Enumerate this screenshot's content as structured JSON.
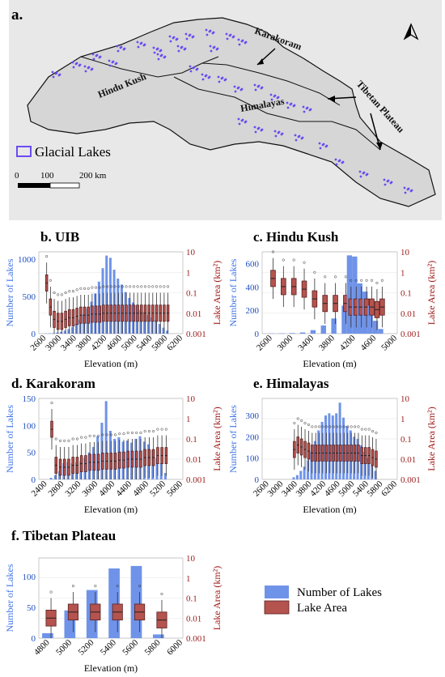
{
  "map": {
    "panel_label": "a.",
    "labels": {
      "hindu_kush": "Hindu Kush",
      "karakoram": "Karakoram",
      "himalayas": "Himalayas",
      "tibetan_plateau": "Tibetan Plateau"
    },
    "legend": "Glacial Lakes",
    "scale": [
      "0",
      "100",
      "200 km"
    ],
    "colors": {
      "lakes": "#6b4cf0",
      "terrain": "#e9e9e9"
    }
  },
  "legend": {
    "count": "Number of Lakes",
    "area": "Lake Area"
  },
  "colors": {
    "bar": "#6f93e8",
    "box": "#b5534e",
    "left_axis": "#3f73e6",
    "right_axis": "#a11a1a"
  },
  "chart_data": [
    {
      "type": "bar",
      "title": "b. UIB",
      "xlabel": "Elevation (m)",
      "ylabel": "Number of Lakes",
      "y2label": "Lake Area (km²)",
      "ylim": [
        0,
        1100
      ],
      "y2lim": [
        0.001,
        10
      ],
      "y2scale": "log",
      "yticks": [
        "0",
        "500",
        "1000"
      ],
      "y2ticks": [
        "0.001",
        "0.01",
        "0.1",
        "1",
        "10"
      ],
      "xticks": [
        "2600",
        "3000",
        "3400",
        "3800",
        "4200",
        "4600",
        "5000",
        "5400",
        "5800",
        "6200"
      ],
      "x": [
        2600,
        2700,
        2800,
        2900,
        3000,
        3100,
        3200,
        3300,
        3400,
        3500,
        3600,
        3700,
        3800,
        3900,
        4000,
        4100,
        4200,
        4300,
        4400,
        4500,
        4600,
        4700,
        4800,
        4900,
        5000,
        5100,
        5200,
        5300,
        5400,
        5500,
        5600,
        5700,
        5800
      ],
      "counts": [
        3,
        5,
        8,
        15,
        25,
        40,
        60,
        90,
        130,
        190,
        260,
        340,
        430,
        540,
        700,
        880,
        1050,
        1020,
        860,
        740,
        660,
        560,
        480,
        420,
        380,
        320,
        290,
        250,
        220,
        180,
        130,
        80,
        40
      ],
      "box_median": [
        0.3,
        0.02,
        0.005,
        0.004,
        0.004,
        0.005,
        0.006,
        0.006,
        0.007,
        0.008,
        0.008,
        0.008,
        0.009,
        0.009,
        0.009,
        0.01,
        0.01,
        0.01,
        0.01,
        0.01,
        0.01,
        0.01,
        0.01,
        0.01,
        0.01,
        0.01,
        0.01,
        0.01,
        0.01,
        0.01,
        0.01,
        0.01,
        0.01
      ]
    },
    {
      "type": "bar",
      "title": "c. Hindu Kush",
      "xlabel": "Elevation (m)",
      "ylabel": "Number of Lakes",
      "y2label": "Lake Area (km²)",
      "ylim": [
        0,
        700
      ],
      "y2lim": [
        0.001,
        10
      ],
      "y2scale": "log",
      "yticks": [
        "0",
        "200",
        "400",
        "600"
      ],
      "y2ticks": [
        "0.001",
        "0.01",
        "0.1",
        "1",
        "10"
      ],
      "xticks": [
        "2600",
        "3000",
        "3400",
        "3800",
        "4200",
        "4600",
        "5000"
      ],
      "x": [
        2600,
        2800,
        3000,
        3200,
        3400,
        3600,
        3800,
        4000,
        4100,
        4200,
        4300,
        4400,
        4500,
        4600,
        4700
      ],
      "counts": [
        2,
        3,
        5,
        10,
        30,
        70,
        130,
        240,
        670,
        660,
        430,
        360,
        240,
        110,
        40
      ],
      "box_median": [
        0.5,
        0.2,
        0.2,
        0.15,
        0.05,
        0.03,
        0.03,
        0.03,
        0.02,
        0.02,
        0.02,
        0.02,
        0.02,
        0.015,
        0.02
      ]
    },
    {
      "type": "bar",
      "title": "d. Karakoram",
      "xlabel": "Elevation (m)",
      "ylabel": "Number of Lakes",
      "y2label": "Lake Area (km²)",
      "ylim": [
        0,
        150
      ],
      "y2lim": [
        0.001,
        10
      ],
      "y2scale": "log",
      "yticks": [
        "0",
        "50",
        "100",
        "150"
      ],
      "y2ticks": [
        "0.001",
        "0.01",
        "0.1",
        "1",
        "10"
      ],
      "xticks": [
        "2400",
        "2800",
        "3200",
        "3600",
        "4000",
        "4400",
        "4800",
        "5200",
        "5600"
      ],
      "x": [
        2500,
        2600,
        2700,
        2800,
        2900,
        3000,
        3100,
        3200,
        3300,
        3400,
        3500,
        3600,
        3700,
        3800,
        3900,
        4000,
        4100,
        4200,
        4300,
        4400,
        4500,
        4600,
        4700,
        4800,
        4900,
        5000,
        5100,
        5200
      ],
      "counts": [
        3,
        8,
        15,
        30,
        32,
        30,
        32,
        34,
        40,
        50,
        60,
        80,
        105,
        145,
        90,
        75,
        78,
        70,
        72,
        68,
        75,
        80,
        70,
        65,
        55,
        40,
        30,
        12
      ],
      "box_median": [
        0.3,
        0.005,
        0.004,
        0.004,
        0.004,
        0.005,
        0.005,
        0.006,
        0.006,
        0.007,
        0.007,
        0.007,
        0.008,
        0.008,
        0.008,
        0.008,
        0.009,
        0.009,
        0.01,
        0.01,
        0.01,
        0.01,
        0.012,
        0.012,
        0.012,
        0.015,
        0.015,
        0.015
      ]
    },
    {
      "type": "bar",
      "title": "e. Himalayas",
      "xlabel": "Elevation (m)",
      "ylabel": "Number of Lakes",
      "y2label": "Lake Area (km²)",
      "ylim": [
        0,
        380
      ],
      "y2lim": [
        0.001,
        10
      ],
      "y2scale": "log",
      "yticks": [
        "0",
        "100",
        "200",
        "300"
      ],
      "y2ticks": [
        "0.001",
        "0.01",
        "0.1",
        "1",
        "10"
      ],
      "xticks": [
        "2600",
        "3000",
        "3400",
        "3800",
        "4200",
        "4600",
        "5000",
        "5400",
        "5800",
        "6200"
      ],
      "x": [
        3300,
        3400,
        3500,
        3600,
        3700,
        3800,
        3900,
        4000,
        4100,
        4200,
        4300,
        4400,
        4500,
        4600,
        4700,
        4800,
        4900,
        5000,
        5100,
        5200,
        5300,
        5400,
        5500,
        5600
      ],
      "counts": [
        10,
        20,
        40,
        60,
        90,
        130,
        180,
        230,
        270,
        300,
        310,
        300,
        310,
        360,
        290,
        250,
        230,
        200,
        190,
        160,
        130,
        100,
        70,
        40
      ],
      "box_median": [
        0.03,
        0.05,
        0.04,
        0.03,
        0.025,
        0.02,
        0.02,
        0.02,
        0.02,
        0.02,
        0.02,
        0.02,
        0.02,
        0.02,
        0.02,
        0.02,
        0.02,
        0.02,
        0.02,
        0.015,
        0.015,
        0.015,
        0.012,
        0.01
      ]
    },
    {
      "type": "bar",
      "title": "f. Tibetan Plateau",
      "xlabel": "Elevation (m)",
      "ylabel": "Number of Lakes",
      "y2label": "Lake Area (km²)",
      "ylim": [
        0,
        130
      ],
      "y2lim": [
        0.001,
        10
      ],
      "y2scale": "log",
      "yticks": [
        "0",
        "50",
        "100"
      ],
      "y2ticks": [
        "0.001",
        "0.01",
        "0.1",
        "1",
        "10"
      ],
      "xticks": [
        "4800",
        "5000",
        "5200",
        "5400",
        "5600",
        "5800",
        "6000"
      ],
      "x": [
        4800,
        5000,
        5200,
        5400,
        5600,
        5800
      ],
      "counts": [
        8,
        45,
        78,
        113,
        117,
        6
      ],
      "box_median": [
        0.01,
        0.02,
        0.02,
        0.02,
        0.02,
        0.008
      ]
    }
  ]
}
